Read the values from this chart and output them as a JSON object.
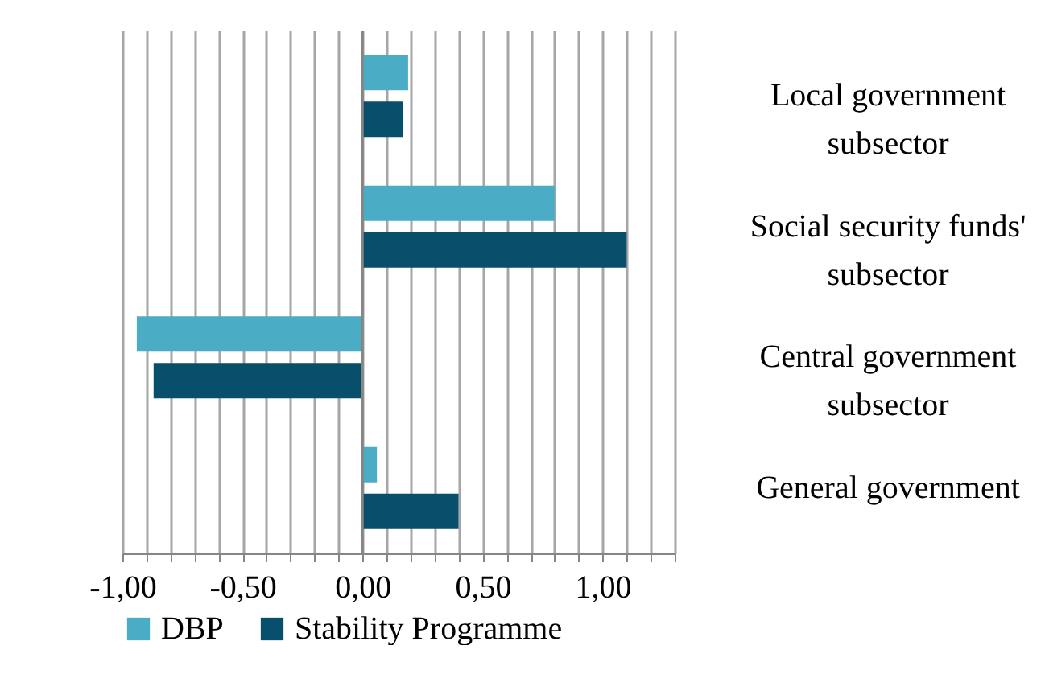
{
  "chart_data": {
    "type": "bar",
    "orientation": "horizontal",
    "categories": [
      "Local government subsector",
      "Social security funds' subsector",
      "Central government subsector",
      "General government"
    ],
    "series": [
      {
        "name": "DBP",
        "color": "#4bacc6",
        "values": [
          0.19,
          0.8,
          -0.94,
          0.06
        ]
      },
      {
        "name": "Stability Programme",
        "color": "#074f6a",
        "values": [
          0.17,
          1.1,
          -0.87,
          0.4
        ]
      }
    ],
    "xlim": [
      -1,
      1.3
    ],
    "xticks": [
      {
        "value": -1,
        "label": "-1,00"
      },
      {
        "value": -0.9,
        "label": null
      },
      {
        "value": -0.8,
        "label": null
      },
      {
        "value": -0.7,
        "label": null
      },
      {
        "value": -0.6,
        "label": null
      },
      {
        "value": -0.5,
        "label": "-0,50"
      },
      {
        "value": -0.4,
        "label": null
      },
      {
        "value": -0.3,
        "label": null
      },
      {
        "value": -0.2,
        "label": null
      },
      {
        "value": -0.1,
        "label": null
      },
      {
        "value": 0,
        "label": "0,00"
      },
      {
        "value": 0.1,
        "label": null
      },
      {
        "value": 0.2,
        "label": null
      },
      {
        "value": 0.3,
        "label": null
      },
      {
        "value": 0.4,
        "label": null
      },
      {
        "value": 0.5,
        "label": "0,50"
      },
      {
        "value": 0.6,
        "label": null
      },
      {
        "value": 0.7,
        "label": null
      },
      {
        "value": 0.8,
        "label": null
      },
      {
        "value": 0.9,
        "label": null
      },
      {
        "value": 1,
        "label": "1,00"
      },
      {
        "value": 1.1,
        "label": null
      },
      {
        "value": 1.2,
        "label": null
      },
      {
        "value": 1.3,
        "label": null
      }
    ],
    "grid": "x",
    "legend": "bottom"
  }
}
